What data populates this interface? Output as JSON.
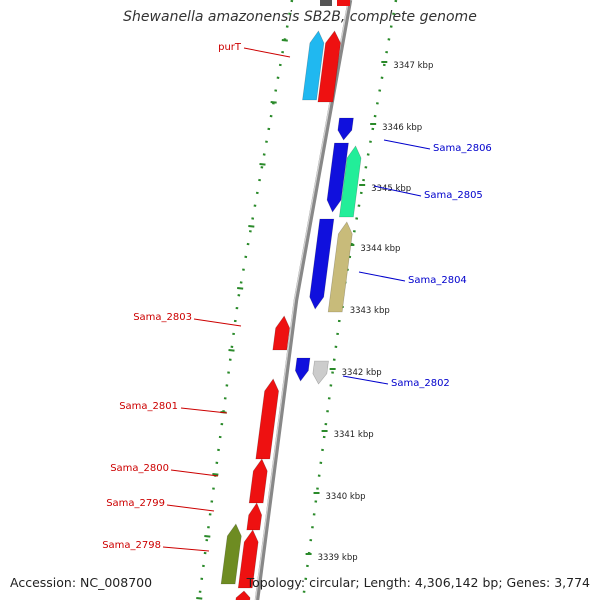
{
  "header": {
    "title": "Shewanella amazonensis SB2B, complete genome"
  },
  "footer": {
    "accession": "Accession: NC_008700",
    "summary": "Topology: circular; Length: 4,306,142 bp; Genes: 3,774"
  },
  "colors": {
    "forward_label": "#cc0000",
    "reverse_label": "#0000cc",
    "backbone": "#888888",
    "tick": "#2a8a2a"
  },
  "ticks": [
    {
      "label": "3347 kbp"
    },
    {
      "label": "3346 kbp"
    },
    {
      "label": "3345 kbp"
    },
    {
      "label": "3344 kbp"
    },
    {
      "label": "3343 kbp"
    },
    {
      "label": "3342 kbp"
    },
    {
      "label": "3341 kbp"
    },
    {
      "label": "3340 kbp"
    },
    {
      "label": "3339 kbp"
    }
  ],
  "genes": [
    {
      "name": "purT",
      "strand": "left"
    },
    {
      "name": "Sama_2806",
      "strand": "right"
    },
    {
      "name": "Sama_2805",
      "strand": "right"
    },
    {
      "name": "Sama_2804",
      "strand": "right"
    },
    {
      "name": "Sama_2803",
      "strand": "left"
    },
    {
      "name": "Sama_2802",
      "strand": "right"
    },
    {
      "name": "Sama_2801",
      "strand": "left"
    },
    {
      "name": "Sama_2800",
      "strand": "left"
    },
    {
      "name": "Sama_2799",
      "strand": "left"
    },
    {
      "name": "Sama_2798",
      "strand": "left"
    }
  ]
}
